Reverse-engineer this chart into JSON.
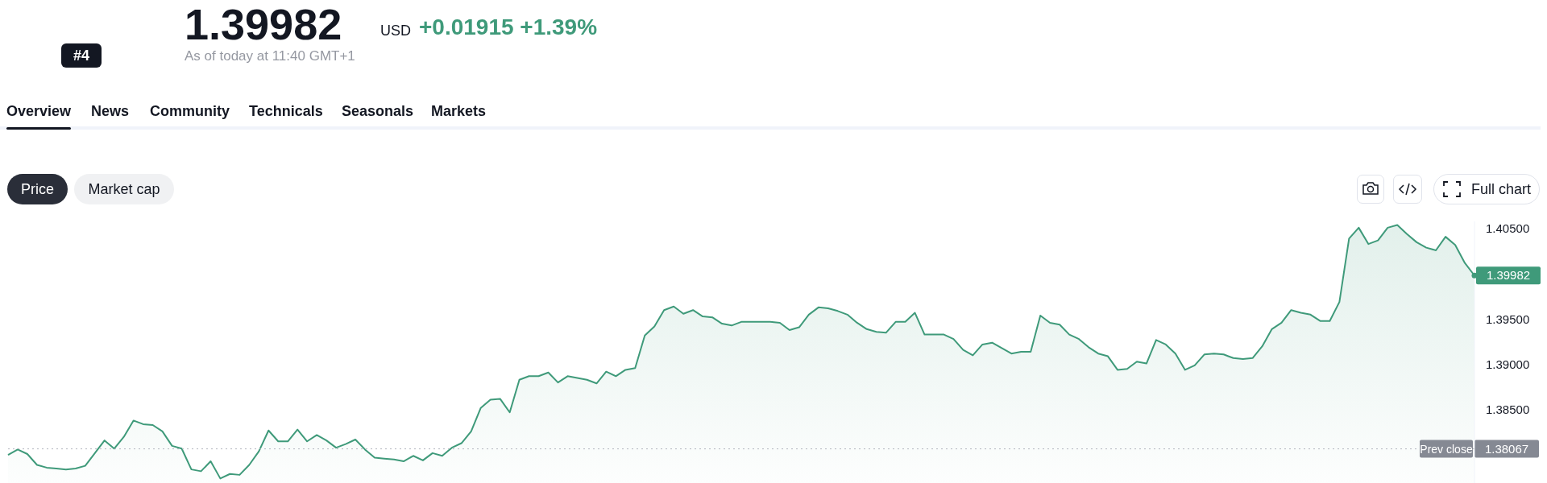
{
  "chart_data": {
    "type": "area",
    "title": "1.39982",
    "subtitle": "As of today at 11:40 GMT+1",
    "annotations": [
      "USD",
      "+0.01915 +1.39%",
      "#4",
      "Overview",
      "News",
      "Community",
      "Technicals",
      "Seasonals",
      "Markets",
      "Price",
      "Market cap",
      "Full chart",
      "1.39982",
      "1.38067"
    ],
    "categories": [
      null,
      null,
      null,
      null,
      null,
      null,
      null,
      null,
      null,
      null,
      null,
      null,
      null,
      null,
      null,
      null,
      null,
      null,
      null,
      null,
      null,
      null,
      null,
      null,
      null,
      null,
      null,
      null,
      null,
      null,
      null,
      null,
      null,
      null,
      null,
      null,
      null,
      null,
      null,
      null,
      null,
      null,
      null,
      null,
      null,
      null,
      null,
      null,
      null,
      null,
      null,
      null,
      null,
      null,
      null,
      null,
      null,
      null,
      null,
      null,
      null,
      null,
      null,
      null,
      null,
      null,
      null,
      null,
      null,
      null,
      null,
      null,
      null,
      null,
      null,
      null,
      null,
      null,
      null,
      null,
      null,
      null,
      null,
      null,
      null,
      null,
      null,
      null,
      null,
      null,
      null,
      null,
      null,
      null,
      null,
      null,
      null,
      null,
      null,
      null,
      null,
      null,
      null,
      null,
      null,
      null,
      null,
      null,
      null,
      null,
      null,
      null,
      null,
      null,
      null,
      null,
      null,
      null,
      null,
      null,
      null,
      null,
      null,
      null,
      null,
      null,
      null,
      null,
      null,
      null,
      null,
      null,
      null,
      null,
      null,
      null,
      null,
      null,
      null,
      null,
      null,
      null,
      null,
      null,
      null,
      null,
      null,
      null,
      null,
      null,
      null,
      null,
      null
    ],
    "series": [
      {
        "color": "#3f9a7a",
        "values": [
          1.38,
          1.3806,
          1.3801,
          1.3789,
          1.3786,
          1.3785,
          1.3784,
          1.3785,
          1.3788,
          1.3802,
          1.3816,
          1.3807,
          1.382,
          1.3838,
          1.3834,
          1.3833,
          1.3826,
          1.381,
          1.3807,
          1.3784,
          1.3782,
          1.3793,
          1.3774,
          1.3779,
          1.3778,
          1.3789,
          1.3804,
          1.3827,
          1.3815,
          1.3815,
          1.3828,
          1.3815,
          1.3822,
          1.3816,
          1.3808,
          1.3812,
          1.3817,
          1.3806,
          1.3797,
          1.3796,
          1.3795,
          1.3793,
          1.3799,
          1.3794,
          1.3802,
          1.3799,
          1.3808,
          1.3813,
          1.3826,
          1.3852,
          1.3861,
          1.3862,
          1.3847,
          1.3883,
          1.3887,
          1.3887,
          1.3891,
          1.388,
          1.3887,
          1.3885,
          1.3883,
          1.3879,
          1.3892,
          1.3887,
          1.3894,
          1.3896,
          1.3932,
          1.3942,
          1.396,
          1.3964,
          1.3956,
          1.396,
          1.3953,
          1.3952,
          1.3945,
          1.3943,
          1.3947,
          1.3947,
          1.3947,
          1.3947,
          1.3946,
          1.3938,
          1.3941,
          1.3955,
          1.3963,
          1.3962,
          1.3959,
          1.3955,
          1.3946,
          1.3939,
          1.3936,
          1.3935,
          1.3947,
          1.3947,
          1.3957,
          1.3933,
          1.3933,
          1.3933,
          1.3928,
          1.3916,
          1.391,
          1.3922,
          1.3924,
          1.3918,
          1.3912,
          1.3914,
          1.3914,
          1.3954,
          1.3946,
          1.3944,
          1.3933,
          1.3928,
          1.3919,
          1.3912,
          1.3909,
          1.3894,
          1.3895,
          1.3903,
          1.3901,
          1.3927,
          1.3922,
          1.3912,
          1.3894,
          1.3899,
          1.3911,
          1.3912,
          1.3911,
          1.3907,
          1.3906,
          1.3907,
          1.392,
          1.3939,
          1.3946,
          1.396,
          1.3957,
          1.3955,
          1.3948,
          1.3948,
          1.3969,
          1.4039,
          1.4051,
          1.4033,
          1.4037,
          1.4051,
          1.4054,
          1.4044,
          1.4035,
          1.4029,
          1.4026,
          1.4041,
          1.4032,
          1.4012,
          1.39982
        ]
      }
    ],
    "ylim": [
      1.3769,
      1.4058
    ],
    "yticks": [
      {
        "value": 1.385,
        "label": "1.38500"
      },
      {
        "value": 1.39,
        "label": "1.39000"
      },
      {
        "value": 1.395,
        "label": "1.39500"
      },
      {
        "value": 1.405,
        "label": "1.40500"
      }
    ],
    "ref_lines": [
      {
        "axis": "y",
        "value": 1.38067,
        "label": "Prev close",
        "color": "#b2b5be",
        "line_style": "dotted"
      }
    ],
    "tick_labels": "y",
    "grid": false,
    "legend": false,
    "marker": "none",
    "line_style": "solid"
  }
}
